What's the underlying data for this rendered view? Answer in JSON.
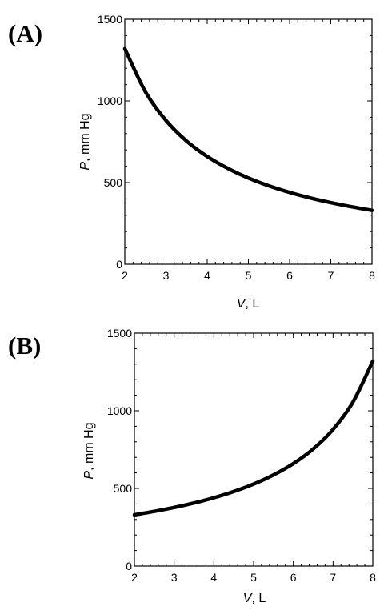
{
  "chart_data": [
    {
      "type": "line",
      "panel_label": "(A)",
      "xlabel_var": "V",
      "xlabel_unit": ", L",
      "ylabel_var": "P",
      "ylabel_unit": ", mm Hg",
      "xlim": [
        2,
        8
      ],
      "ylim": [
        0,
        1500
      ],
      "xticks": [
        "2",
        "3",
        "4",
        "5",
        "6",
        "7",
        "8"
      ],
      "yticks": [
        "0",
        "500",
        "1000",
        "1500"
      ],
      "grid": false,
      "series": [
        {
          "x": [
            2,
            2.5,
            3,
            3.5,
            4,
            4.5,
            5,
            5.5,
            6,
            6.5,
            7,
            7.5,
            8
          ],
          "y": [
            1320,
            1056,
            880,
            754,
            660,
            587,
            528,
            480,
            440,
            406,
            377,
            352,
            330
          ]
        }
      ]
    },
    {
      "type": "line",
      "panel_label": "(B)",
      "xlabel_var": "V",
      "xlabel_unit": ", L",
      "ylabel_var": "P",
      "ylabel_unit": ", mm Hg",
      "xlim": [
        2,
        8
      ],
      "ylim": [
        0,
        1500
      ],
      "xticks": [
        "2",
        "3",
        "4",
        "5",
        "6",
        "7",
        "8"
      ],
      "yticks": [
        "0",
        "500",
        "1000",
        "1500"
      ],
      "grid": false,
      "series": [
        {
          "x": [
            2,
            2.5,
            3,
            3.5,
            4,
            4.5,
            5,
            5.5,
            6,
            6.5,
            7,
            7.5,
            8
          ],
          "y": [
            330,
            352,
            377,
            406,
            440,
            480,
            528,
            587,
            660,
            754,
            880,
            1056,
            1320
          ]
        }
      ]
    }
  ]
}
